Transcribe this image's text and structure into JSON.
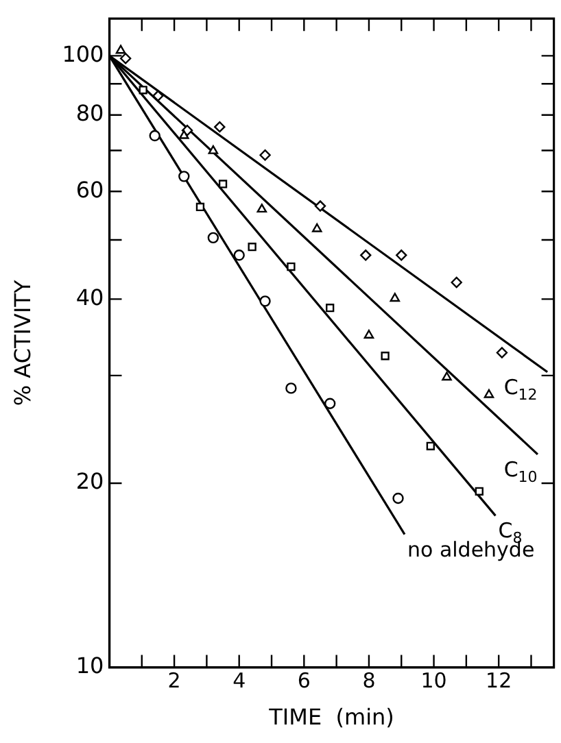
{
  "chart_data": {
    "type": "scatter",
    "xlabel": "TIME  (min)",
    "ylabel": "% ACTIVITY",
    "log": "y",
    "grid": false,
    "legend": "right",
    "xlim": [
      0,
      13.7
    ],
    "ylim": [
      10,
      115
    ],
    "xticks": [
      {
        "value": 1,
        "label": null
      },
      2,
      {
        "value": 3,
        "label": null
      },
      4,
      {
        "value": 5,
        "label": null
      },
      6,
      {
        "value": 7,
        "label": null
      },
      8,
      {
        "value": 9,
        "label": null
      },
      10,
      {
        "value": 11,
        "label": null
      },
      12,
      {
        "value": 13,
        "label": null
      }
    ],
    "yticks": [
      10,
      20,
      {
        "value": 30,
        "label": null
      },
      40,
      {
        "value": 50,
        "label": null
      },
      60,
      {
        "value": 70,
        "label": null
      },
      80,
      {
        "value": 90,
        "label": null
      },
      100
    ],
    "series": [
      {
        "marker": "circle",
        "color": "#000000",
        "x": [
          1.4,
          2.3,
          3.2,
          4.0,
          4.8,
          5.6,
          6.8,
          8.9
        ],
        "values": [
          74,
          63.5,
          50.4,
          47.2,
          39.7,
          28.6,
          27,
          18.9
        ]
      },
      {
        "marker": "square",
        "color": "#000000",
        "x": [
          1.04,
          2.8,
          3.5,
          4.4,
          5.6,
          6.8,
          8.5,
          9.9,
          11.4
        ],
        "values": [
          87.9,
          56.6,
          61.7,
          48.7,
          45.2,
          38.7,
          32.3,
          23.0,
          19.4
        ]
      },
      {
        "marker": "triangle",
        "color": "#000000",
        "x": [
          0.35,
          2.3,
          3.2,
          4.7,
          6.4,
          8.0,
          8.8,
          10.4,
          11.7
        ],
        "values": [
          102,
          74,
          69.9,
          56.1,
          52.1,
          34.9,
          40.1,
          29.8,
          27.9
        ]
      },
      {
        "marker": "diamond",
        "color": "#000000",
        "x": [
          0.5,
          1.5,
          2.4,
          3.4,
          4.8,
          6.5,
          7.9,
          9.0,
          10.7,
          12.1
        ],
        "values": [
          99,
          86,
          75.5,
          76.5,
          68.8,
          56.8,
          47.2,
          47.2,
          42.6,
          32.7
        ]
      },
      {
        "type": "line",
        "name": "no aldehyde",
        "color": "#000000",
        "x": [
          0,
          9.1
        ],
        "values": [
          100,
          16.5
        ]
      },
      {
        "type": "line",
        "name": "C$_{8}$",
        "color": "#000000",
        "x": [
          0,
          11.9
        ],
        "values": [
          100,
          17.7
        ]
      },
      {
        "type": "line",
        "name": "C$_{10}$",
        "color": "#000000",
        "x": [
          0,
          13.2
        ],
        "values": [
          100,
          22.3
        ]
      },
      {
        "type": "line",
        "name": "C$_{12}$",
        "color": "#000000",
        "x": [
          0,
          13.5
        ],
        "values": [
          100,
          30.4
        ]
      }
    ]
  }
}
